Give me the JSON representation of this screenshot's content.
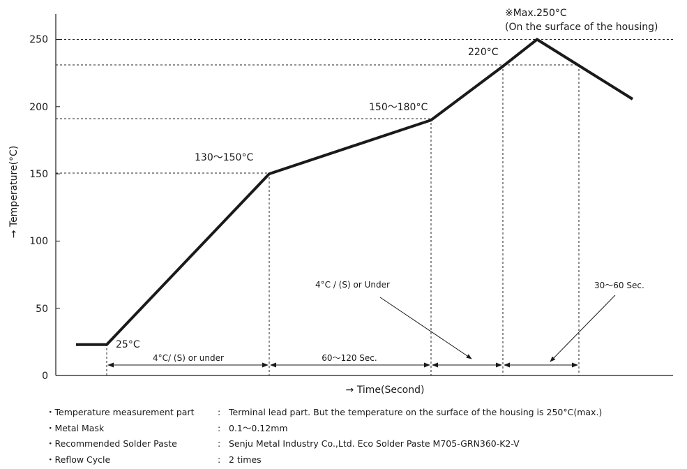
{
  "chart_data": {
    "type": "line",
    "title": "",
    "xlabel": "→ Time(Second)",
    "ylabel": "→ Temperature(°C)",
    "ylim": [
      0,
      260
    ],
    "yticks": [
      "0",
      "50",
      "100",
      "150",
      "200",
      "250"
    ],
    "series": [
      {
        "x": [
          0,
          1,
          2,
          3,
          4,
          5,
          6
        ],
        "y": [
          23,
          23,
          150,
          190,
          230,
          250,
          230
        ]
      }
    ],
    "annotations": {
      "start": "25°C",
      "preheat_start": "130～150°C",
      "preheat_end": "150～180°C",
      "reflow": "220°C",
      "peak_line1": "※Max.250°C",
      "peak_line2": "(On the surface of the housing)"
    },
    "intervals": [
      {
        "label": "4°C/ (S) or under"
      },
      {
        "label": "60～120 Sec."
      },
      {
        "label": ""
      },
      {
        "label": ""
      }
    ],
    "callouts": {
      "cooling_rate": "4°C / (S) or Under",
      "peak_time": "30～60 Sec."
    }
  },
  "notes": [
    {
      "label": "・Temperature measurement part",
      "sep": ":",
      "value": "Terminal lead part. But the temperature on the surface of the housing is 250°C(max.)"
    },
    {
      "label": "・Metal Mask",
      "sep": ":",
      "value": "0.1～0.12mm"
    },
    {
      "label": "・Recommended Solder Paste",
      "sep": ":",
      "value": "Senju Metal Industry Co.,Ltd. Eco Solder Paste M705-GRN360-K2-V"
    },
    {
      "label": "・Reflow Cycle",
      "sep": ":",
      "value": "2 times"
    }
  ]
}
